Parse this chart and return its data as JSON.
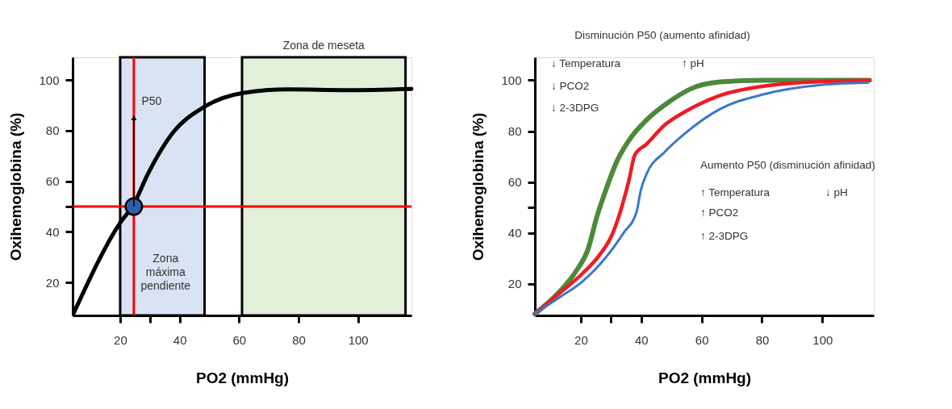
{
  "chart_data": [
    {
      "type": "line",
      "xlabel": "PO2 (mmHg)",
      "ylabel": "Oxihemoglobina (%)",
      "xlim": [
        4,
        118
      ],
      "ylim": [
        7,
        109
      ],
      "xticks": [
        20,
        {
          "value": 30,
          "label": null
        },
        40,
        60,
        80,
        100
      ],
      "yticks": [
        20,
        40,
        {
          "value": 50,
          "label": null
        },
        60,
        80,
        100
      ],
      "series": [
        {
          "color": "#000000",
          "x": [
            4.5,
            20,
            24.6,
            29.2,
            38,
            47.7,
            61.3,
            76.8,
            96,
            118
          ],
          "values": [
            8.2,
            43.6,
            51,
            62.6,
            79.6,
            89,
            94.9,
            96.3,
            96,
            96.5
          ]
        },
        {
          "type": "scatter",
          "marker": "circle",
          "color": "#2f5fa8",
          "x": [
            24.6
          ],
          "values": [
            50
          ]
        }
      ],
      "ref_lines": [
        {
          "axis": "y",
          "value": 50,
          "color": "#ff0000"
        },
        {
          "axis": "x",
          "value": 24.6,
          "color": "#ff0000"
        }
      ],
      "bands": [
        {
          "axis": "x",
          "from": 20,
          "to": 48.4,
          "label": "Zona máxima pendiente",
          "color": "#dae3f3"
        },
        {
          "axis": "x",
          "from": 61,
          "to": 116,
          "label": "Zona de meseta",
          "color": "#e2efd9"
        }
      ],
      "annotations": [
        {
          "text": "P50",
          "x": 24.6,
          "y": 50
        }
      ]
    },
    {
      "type": "line",
      "xlabel": "PO2 (mmHg)",
      "ylabel": "Oxihemoglobina (%)",
      "xlim": [
        4.8,
        117
      ],
      "ylim": [
        7.6,
        109
      ],
      "xticks": [
        20,
        {
          "value": 30,
          "label": null
        },
        40,
        60,
        80,
        100
      ],
      "yticks": [
        20,
        40,
        {
          "value": 50,
          "label": null
        },
        60,
        80,
        100
      ],
      "series": [
        {
          "color": "#4a8a3a",
          "x": [
            4.8,
            12.7,
            18.5,
            22.4,
            25.3,
            28.3,
            32.1,
            37,
            41.8,
            49.6,
            56.4,
            66.1,
            80.7,
            115.6
          ],
          "values": [
            8.2,
            16.6,
            25.1,
            33.6,
            46.3,
            56.9,
            68.5,
            78.1,
            84.4,
            91.8,
            96.6,
            99.3,
            100,
            100
          ]
        },
        {
          "color": "#ee1c24",
          "x": [
            4.8,
            12.7,
            20.5,
            26.3,
            30.2,
            33.1,
            36,
            37.9,
            41.8,
            47.7,
            54.5,
            66.1,
            80.7,
            100,
            115.6
          ],
          "values": [
            8.2,
            16.1,
            24,
            31.5,
            38.9,
            48.4,
            61,
            70.7,
            74.9,
            82.3,
            87.6,
            94,
            97.7,
            99.5,
            100
          ]
        },
        {
          "color": "#3b78c8",
          "x": [
            4.8,
            12.7,
            20.5,
            28.3,
            34.1,
            38.5,
            39.9,
            41.8,
            47.7,
            54.5,
            66.1,
            80.7,
            100,
            115.1
          ],
          "values": [
            8.2,
            14.5,
            20.9,
            30.4,
            39.9,
            48.4,
            56.9,
            63.2,
            71.7,
            79.1,
            88.7,
            94.5,
            98.2,
            99
          ]
        }
      ],
      "annotations": [
        "Disminución P50 (aumento afinidad)",
        "↓  Temperatura",
        "↑  pH",
        "↓  PCO2",
        "↓  2-3DPG",
        "Aumento P50 (disminución afinidad)",
        "↑  Temperatura",
        "↓  pH",
        "↑  PCO2",
        "↑  2-3DPG"
      ]
    }
  ]
}
